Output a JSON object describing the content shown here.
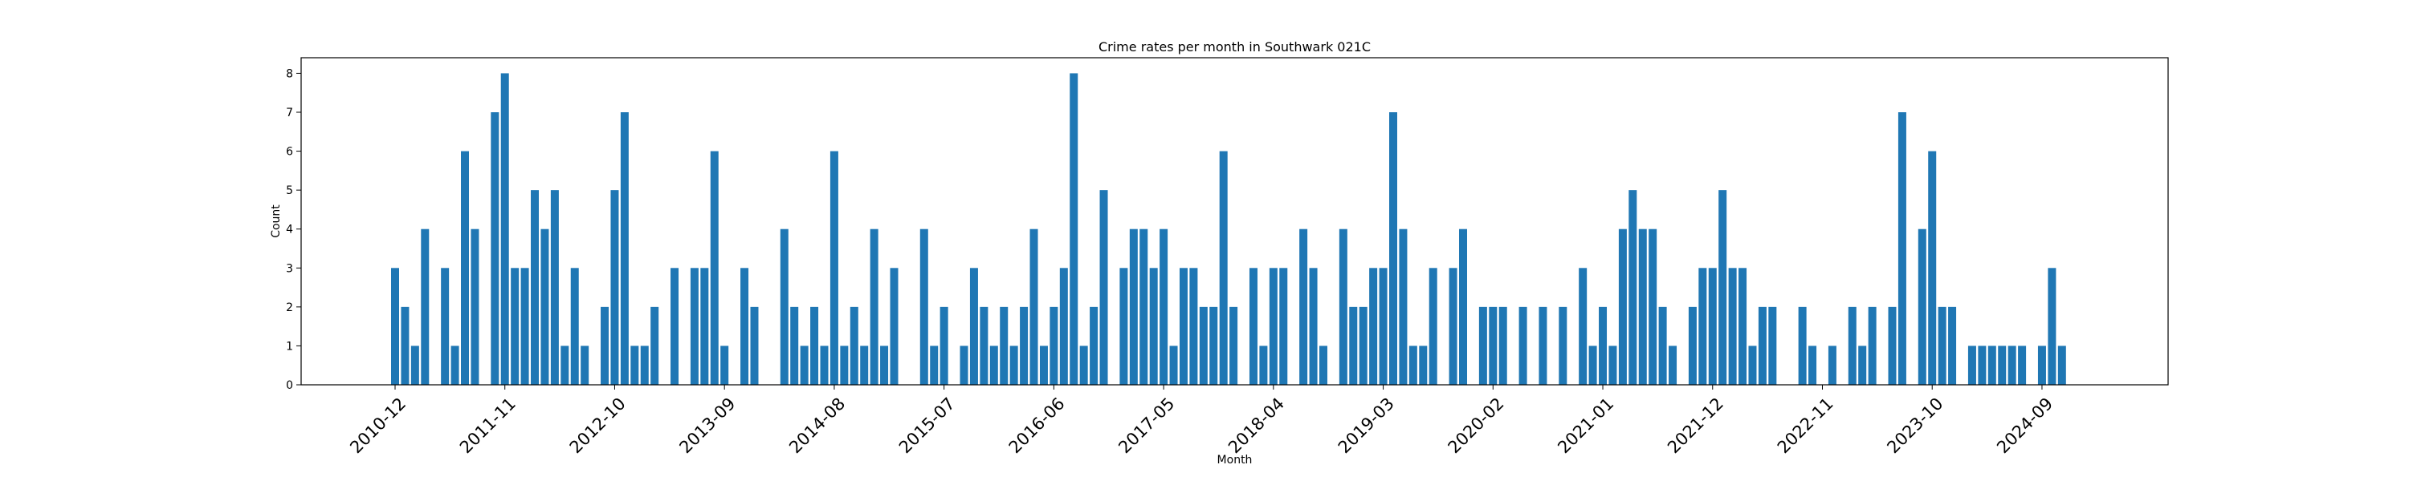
{
  "chart_data": {
    "type": "bar",
    "title": "Crime rates per month in Southwark 021C",
    "xlabel": "Month",
    "ylabel": "Count",
    "ylim": [
      0,
      8.4
    ],
    "yticks": [
      0,
      1,
      2,
      3,
      4,
      5,
      6,
      7,
      8
    ],
    "grid": false,
    "start_month": "2010-12",
    "bar_color": "#1f77b4",
    "xtick_labels": [
      "2010-12",
      "2011-11",
      "2012-10",
      "2013-09",
      "2014-08",
      "2015-07",
      "2016-06",
      "2017-05",
      "2018-04",
      "2019-03",
      "2020-02",
      "2021-01",
      "2021-12",
      "2022-11",
      "2023-10",
      "2024-09"
    ],
    "values": [
      3,
      2,
      1,
      4,
      0,
      3,
      1,
      6,
      4,
      0,
      7,
      8,
      3,
      3,
      5,
      4,
      5,
      1,
      3,
      1,
      0,
      2,
      5,
      7,
      1,
      1,
      2,
      0,
      3,
      0,
      3,
      3,
      6,
      1,
      0,
      3,
      2,
      0,
      0,
      4,
      2,
      1,
      2,
      1,
      6,
      1,
      2,
      1,
      4,
      1,
      3,
      0,
      0,
      4,
      1,
      2,
      0,
      1,
      3,
      2,
      1,
      2,
      1,
      2,
      4,
      1,
      2,
      3,
      8,
      1,
      2,
      5,
      0,
      3,
      4,
      4,
      3,
      4,
      1,
      3,
      3,
      2,
      2,
      6,
      2,
      0,
      3,
      1,
      3,
      3,
      0,
      4,
      3,
      1,
      0,
      4,
      2,
      2,
      3,
      3,
      7,
      4,
      1,
      1,
      3,
      0,
      3,
      4,
      0,
      2,
      2,
      2,
      0,
      2,
      0,
      2,
      0,
      2,
      0,
      3,
      1,
      2,
      1,
      4,
      5,
      4,
      4,
      2,
      1,
      0,
      2,
      3,
      3,
      5,
      3,
      3,
      1,
      2,
      2,
      0,
      0,
      2,
      1,
      0,
      1,
      0,
      2,
      1,
      2,
      0,
      2,
      7,
      0,
      4,
      6,
      2,
      2,
      0,
      1,
      1,
      1,
      1,
      1,
      1,
      0,
      1,
      3,
      1
    ]
  }
}
